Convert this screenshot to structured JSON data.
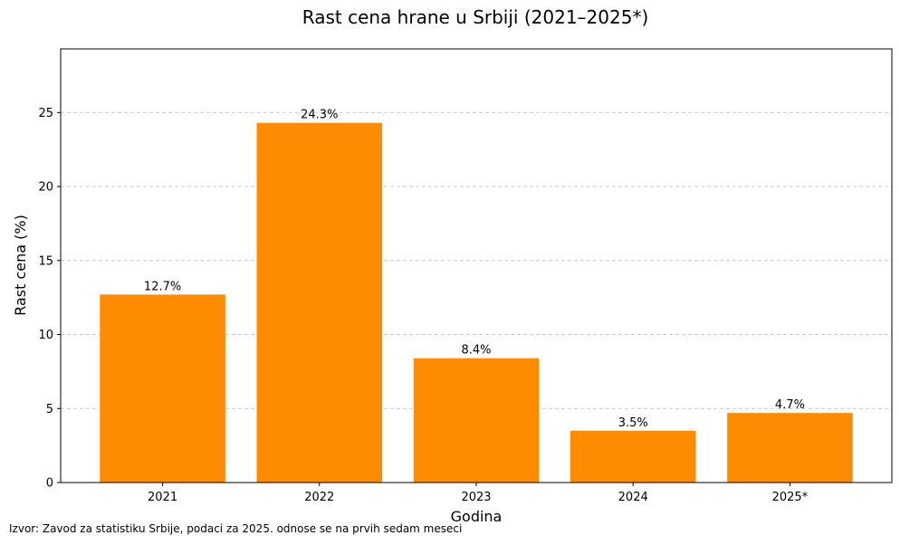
{
  "chart_data": {
    "type": "bar",
    "title": "Rast cena hrane u Srbiji (2021–2025*)",
    "xlabel": "Godina",
    "ylabel": "Rast cena (%)",
    "categories": [
      "2021",
      "2022",
      "2023",
      "2024",
      "2025*"
    ],
    "values": [
      12.7,
      24.3,
      8.4,
      3.5,
      4.7
    ],
    "data_labels": [
      "12.7%",
      "24.3%",
      "8.4%",
      "3.5%",
      "4.7%"
    ],
    "ylim": [
      0,
      29.3
    ],
    "yticks": [
      0,
      5,
      10,
      15,
      20,
      25
    ],
    "ytick_labels": [
      "0",
      "5",
      "10",
      "15",
      "20",
      "25"
    ],
    "grid": "y, dashed",
    "bar_color": "#ff8c00",
    "legend": "none"
  },
  "footnote": "Izvor: Zavod za statistiku Srbije, podaci za 2025. odnose se na prvih sedam meseci"
}
